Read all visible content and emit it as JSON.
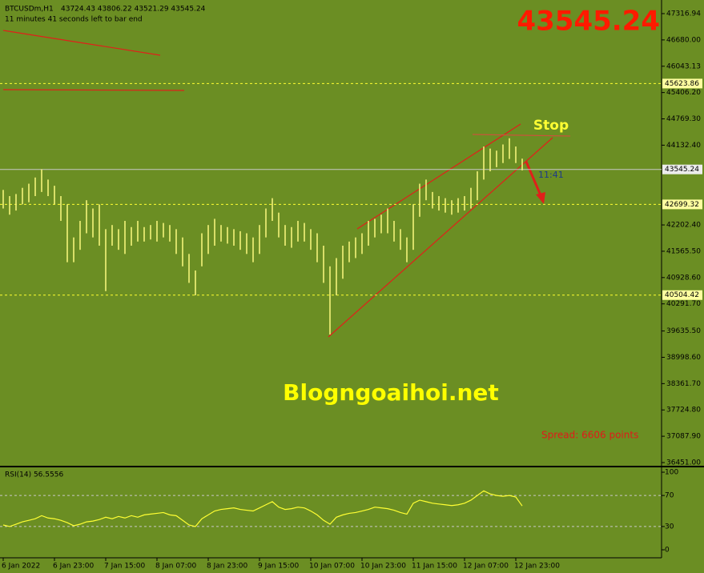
{
  "header": {
    "symbol": "BTCUSDm,H1",
    "ohlc": "43724.43 43806.22 43521.29 43545.24",
    "countdown": "11 minutes 41 seconds left to bar end"
  },
  "big_price": "43545.24",
  "watermark": "Blogngoaihoi.net",
  "spread": "Spread: 6606 points",
  "stop_label": "Stop",
  "timer": "11:41",
  "chart_data": [
    {
      "type": "ohlc",
      "color": "#f3f37a",
      "ylim": [
        36393,
        47646
      ],
      "yticks": [
        {
          "value": 47316.94,
          "label": "47316.94"
        },
        {
          "value": 46680,
          "label": "46680.00"
        },
        {
          "value": 46043.13,
          "label": "46043.13"
        },
        {
          "value": 45406.2,
          "label": "45406.20"
        },
        {
          "value": 44769.3,
          "label": "44769.30"
        },
        {
          "value": 44132.4,
          "label": "44132.40"
        },
        {
          "value": 42202.4,
          "label": "42202.40"
        },
        {
          "value": 41565.5,
          "label": "41565.50"
        },
        {
          "value": 40928.6,
          "label": "40928.60"
        },
        {
          "value": 40291.7,
          "label": "40291.70"
        },
        {
          "value": 39635.5,
          "label": "39635.50"
        },
        {
          "value": 38998.6,
          "label": "38998.60"
        },
        {
          "value": 38361.7,
          "label": "38361.70"
        },
        {
          "value": 37724.8,
          "label": "37724.80"
        },
        {
          "value": 37087.9,
          "label": "37087.90"
        },
        {
          "value": 36451,
          "label": "36451.00"
        }
      ],
      "levels": [
        {
          "value": 45623.86,
          "label": "45623.86"
        },
        {
          "value": 42699.32,
          "label": "42699.32"
        },
        {
          "value": 40504.42,
          "label": "40504.42"
        }
      ],
      "level_color": "#ffff33",
      "current": {
        "value": 43545.24,
        "label": "43545.24"
      },
      "categories": [
        "6 Jan 2022",
        null,
        null,
        null,
        null,
        null,
        null,
        null,
        "6 Jan 23:00",
        null,
        null,
        null,
        null,
        null,
        null,
        null,
        "7 Jan 15:00",
        null,
        null,
        null,
        null,
        null,
        null,
        null,
        "8 Jan 07:00",
        null,
        null,
        null,
        null,
        null,
        null,
        null,
        "8 Jan 23:00",
        null,
        null,
        null,
        null,
        null,
        null,
        null,
        "9 Jan 15:00",
        null,
        null,
        null,
        null,
        null,
        null,
        null,
        "10 Jan 07:00",
        null,
        null,
        null,
        null,
        null,
        null,
        null,
        "10 Jan 23:00",
        null,
        null,
        null,
        null,
        null,
        null,
        null,
        "11 Jan 15:00",
        null,
        null,
        null,
        null,
        null,
        null,
        null,
        "12 Jan 07:00",
        null,
        null,
        null,
        null,
        null,
        null,
        null,
        "12 Jan 23:00",
        null
      ],
      "high": [
        43050,
        42900,
        42950,
        43100,
        43200,
        43350,
        43550,
        43300,
        43150,
        42900,
        42700,
        41900,
        42300,
        42800,
        42600,
        42700,
        42100,
        42200,
        42100,
        42300,
        42150,
        42300,
        42150,
        42200,
        42300,
        42250,
        42200,
        42100,
        41900,
        41500,
        41100,
        42000,
        42200,
        42350,
        42200,
        42150,
        42100,
        42050,
        42000,
        41900,
        42200,
        42600,
        42850,
        42500,
        42200,
        42150,
        42300,
        42250,
        42100,
        42000,
        41700,
        41200,
        41400,
        41700,
        41800,
        41900,
        42000,
        42300,
        42350,
        42450,
        42600,
        42300,
        42100,
        41900,
        42700,
        43200,
        43300,
        43000,
        42900,
        42850,
        42800,
        42850,
        42900,
        43100,
        43500,
        44100,
        44050,
        44000,
        44150,
        44300,
        44100,
        43806.22
      ],
      "low": [
        42600,
        42450,
        42550,
        42700,
        42750,
        42900,
        43000,
        42900,
        42700,
        42300,
        41300,
        41300,
        41600,
        42000,
        41900,
        41700,
        40600,
        41700,
        41600,
        41500,
        41700,
        41800,
        41800,
        41850,
        41800,
        41900,
        41800,
        41500,
        41200,
        40800,
        40500,
        41200,
        41500,
        41700,
        41800,
        41750,
        41700,
        41600,
        41500,
        41300,
        41500,
        41900,
        42300,
        41900,
        41700,
        41650,
        41800,
        41800,
        41600,
        41300,
        40800,
        39550,
        40500,
        40900,
        41300,
        41400,
        41500,
        41700,
        41900,
        42000,
        42000,
        41800,
        41600,
        41300,
        41600,
        42400,
        42800,
        42600,
        42550,
        42500,
        42450,
        42500,
        42550,
        42600,
        42800,
        43300,
        43500,
        43600,
        43700,
        43800,
        43700,
        43521.29
      ]
    },
    {
      "type": "line",
      "title": "RSI(14) 56.5556",
      "color": "#ffff33",
      "ylim": [
        -10.3,
        105.2
      ],
      "yticks": [
        100,
        70,
        30,
        0
      ],
      "levels": [
        70,
        30
      ],
      "values": [
        32,
        30,
        33,
        36,
        38,
        40,
        44,
        41,
        40,
        38,
        35,
        31,
        33,
        36,
        37,
        39,
        42,
        40,
        43,
        41,
        44,
        42,
        45,
        46,
        47,
        48,
        45,
        44,
        38,
        32,
        30,
        40,
        45,
        50,
        52,
        53,
        54,
        52,
        51,
        50,
        54,
        58,
        62,
        55,
        52,
        53,
        55,
        54,
        50,
        45,
        38,
        33,
        42,
        45,
        47,
        48,
        50,
        52,
        55,
        54,
        53,
        51,
        48,
        46,
        60,
        64,
        62,
        60,
        59,
        58,
        57,
        58,
        60,
        64,
        70,
        76,
        72,
        70,
        69,
        70,
        68,
        56.5556
      ]
    }
  ]
}
